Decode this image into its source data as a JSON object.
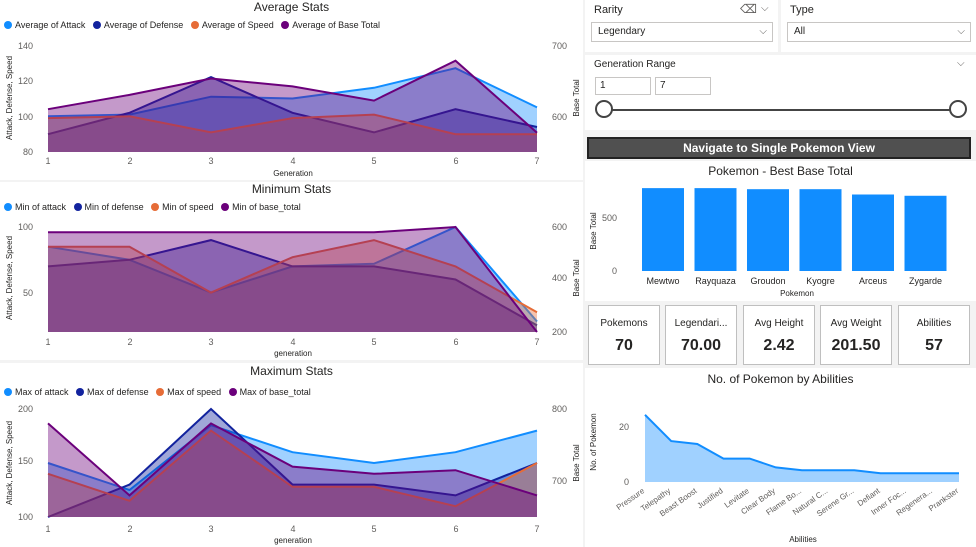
{
  "colors": {
    "blue": "#118dff",
    "navy": "#12239e",
    "orange": "#e66c37",
    "purple": "#6b007b"
  },
  "avg_chart": {
    "title": "Average Stats",
    "legend": [
      "Average of Attack",
      "Average of Defense",
      "Average of Speed",
      "Average of Base Total"
    ],
    "ylabel": "Attack, Defense, Speed",
    "y2label": "Base Total",
    "xlabel": "Generation",
    "yticks": [
      "140",
      "120",
      "100",
      "80"
    ],
    "y2ticks": [
      "700",
      "600"
    ]
  },
  "min_chart": {
    "title": "Minimum Stats",
    "legend": [
      "Min of attack",
      "Min of defense",
      "Min of speed",
      "Min of base_total"
    ],
    "ylabel": "Attack, Defense, Speed",
    "y2label": "Base Total",
    "xlabel": "generation",
    "yticks": [
      "100",
      "50"
    ],
    "y2ticks": [
      "600",
      "400",
      "200"
    ]
  },
  "max_chart": {
    "title": "Maximum Stats",
    "legend": [
      "Max of attack",
      "Max of defense",
      "Max of speed",
      "Max of base_total"
    ],
    "ylabel": "Attack, Defense, Speed",
    "y2label": "Base Total",
    "xlabel": "generation",
    "yticks": [
      "200",
      "150",
      "100"
    ],
    "y2ticks": [
      "800",
      "700"
    ]
  },
  "filters": {
    "rarity_label": "Rarity",
    "rarity_value": "Legendary",
    "type_label": "Type",
    "type_value": "All",
    "range_label": "Generation Range",
    "range_min": "1",
    "range_max": "7"
  },
  "nav_button": "Navigate to Single Pokemon View",
  "bar_chart": {
    "title": "Pokemon - Best Base Total",
    "ylabel": "Base Total",
    "xlabel": "Pokemon",
    "yticks": [
      "500",
      "0"
    ]
  },
  "cards": [
    {
      "label": "Pokemons",
      "value": "70"
    },
    {
      "label": "Legendari...",
      "value": "70.00"
    },
    {
      "label": "Avg Height",
      "value": "2.42"
    },
    {
      "label": "Avg Weight",
      "value": "201.50"
    },
    {
      "label": "Abilities",
      "value": "57"
    }
  ],
  "ability_chart": {
    "title": "No. of Pokemon by Abilities",
    "ylabel": "No. of Pokemon",
    "xlabel": "Abilities",
    "yticks": [
      "20",
      "0"
    ]
  },
  "chart_data": [
    {
      "type": "area",
      "title": "Average Stats",
      "x": [
        1,
        2,
        3,
        4,
        5,
        6,
        7
      ],
      "ylim": [
        80,
        140
      ],
      "y2lim": [
        550,
        700
      ],
      "series": [
        {
          "name": "Average of Attack",
          "axis": "left",
          "values": [
            100,
            101,
            111,
            110,
            116,
            127,
            105
          ]
        },
        {
          "name": "Average of Defense",
          "axis": "left",
          "values": [
            90,
            102,
            122,
            102,
            91,
            104,
            94
          ]
        },
        {
          "name": "Average of Speed",
          "axis": "left",
          "values": [
            99,
            100,
            91,
            99,
            101,
            90,
            90
          ]
        },
        {
          "name": "Average of Base Total",
          "axis": "right",
          "values": [
            610,
            630,
            653,
            642,
            622,
            678,
            577
          ]
        }
      ]
    },
    {
      "type": "area",
      "title": "Minimum Stats",
      "x": [
        1,
        2,
        3,
        4,
        5,
        6,
        7
      ],
      "ylim": [
        20,
        100
      ],
      "y2lim": [
        200,
        600
      ],
      "series": [
        {
          "name": "Min of attack",
          "axis": "left",
          "values": [
            85,
            75,
            50,
            70,
            72,
            100,
            28
          ]
        },
        {
          "name": "Min of defense",
          "axis": "left",
          "values": [
            70,
            75,
            90,
            70,
            70,
            60,
            25
          ]
        },
        {
          "name": "Min of speed",
          "axis": "left",
          "values": [
            85,
            85,
            50,
            77,
            90,
            70,
            35
          ]
        },
        {
          "name": "Min of base_total",
          "axis": "right",
          "values": [
            580,
            580,
            580,
            580,
            580,
            600,
            200
          ]
        }
      ]
    },
    {
      "type": "area",
      "title": "Maximum Stats",
      "x": [
        1,
        2,
        3,
        4,
        5,
        6,
        7
      ],
      "ylim": [
        100,
        200
      ],
      "y2lim": [
        650,
        800
      ],
      "series": [
        {
          "name": "Max of attack",
          "axis": "left",
          "values": [
            150,
            125,
            185,
            160,
            150,
            160,
            180
          ]
        },
        {
          "name": "Max of defense",
          "axis": "left",
          "values": [
            100,
            130,
            200,
            130,
            130,
            120,
            150
          ]
        },
        {
          "name": "Max of speed",
          "axis": "left",
          "values": [
            140,
            115,
            180,
            128,
            128,
            110,
            150
          ]
        },
        {
          "name": "Max of base_total",
          "axis": "right",
          "values": [
            780,
            680,
            780,
            720,
            710,
            715,
            680
          ]
        }
      ]
    },
    {
      "type": "bar",
      "title": "Pokemon - Best Base Total",
      "categories": [
        "Mewtwo",
        "Rayquaza",
        "Groudon",
        "Kyogre",
        "Arceus",
        "Zygarde"
      ],
      "values": [
        780,
        780,
        770,
        770,
        720,
        708
      ],
      "ylim": [
        0,
        800
      ]
    },
    {
      "type": "area",
      "title": "No. of Pokemon by Abilities",
      "categories": [
        "Pressure",
        "Telepathy",
        "Beast Boost",
        "Justified",
        "Levitate",
        "Clear Body",
        "Flame Bo...",
        "Natural C...",
        "Serene Gr...",
        "Defiant",
        "Inner Foc...",
        "Regenera...",
        "Prankster"
      ],
      "values": [
        23,
        14,
        13,
        8,
        8,
        5,
        4,
        4,
        4,
        3,
        3,
        3,
        3
      ],
      "ylim": [
        0,
        26
      ]
    }
  ]
}
